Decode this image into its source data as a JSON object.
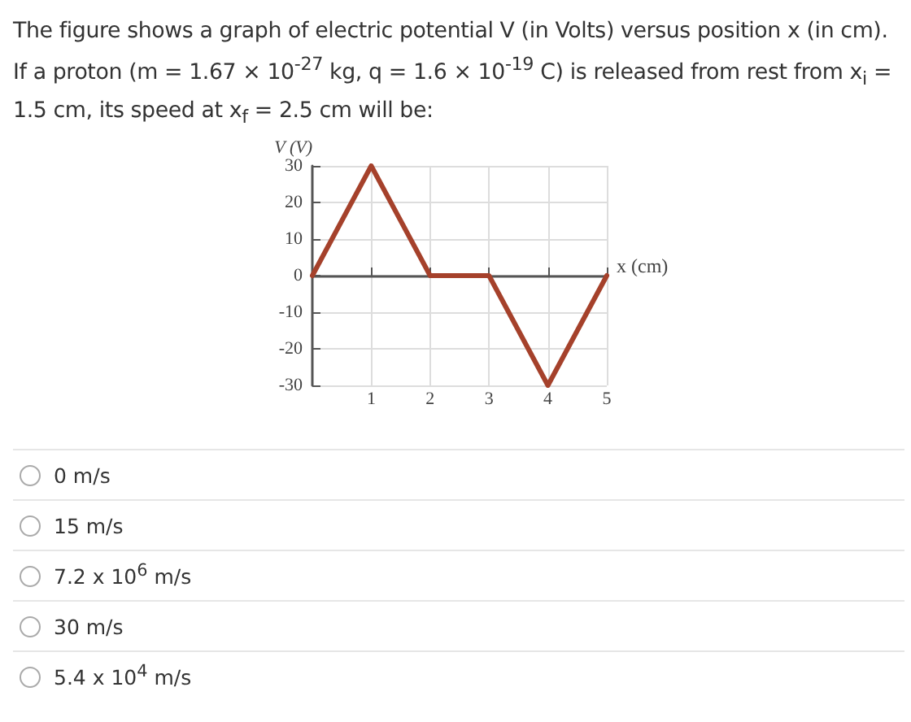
{
  "chart_data": {
    "type": "line",
    "title": "The figure shows a graph of electric potential V (in Volts) versus position x (in cm). If a proton (m = 1.67 × 10$^{-27}$ kg, q = 1.6 × 10$^{-19}$ C) is released from rest from x$_{i}$ = 1.5 cm, its speed at x$_{f}$ = 2.5 cm will be:",
    "xlabel": "x (cm)",
    "ylabel": "V (V)",
    "x": [
      0,
      1,
      2,
      3,
      4,
      5
    ],
    "series": [
      {
        "color": "#a5412b",
        "values": [
          0,
          30,
          0,
          0,
          -30,
          0
        ]
      }
    ],
    "xlim": [
      0,
      5
    ],
    "xticks": [
      1,
      2,
      3,
      4,
      5
    ],
    "ylim": [
      -30,
      30
    ],
    "yticks": [
      -30,
      -20,
      -10,
      0,
      10,
      20,
      30
    ],
    "grid": true,
    "marker": "none",
    "line_style": "solid",
    "annotations": [
      "0 m/s",
      "15 m/s",
      "7.2 x 10$^{6}$ m/s",
      "30 m/s",
      "5.4 x 10$^{4}$ m/s"
    ]
  }
}
